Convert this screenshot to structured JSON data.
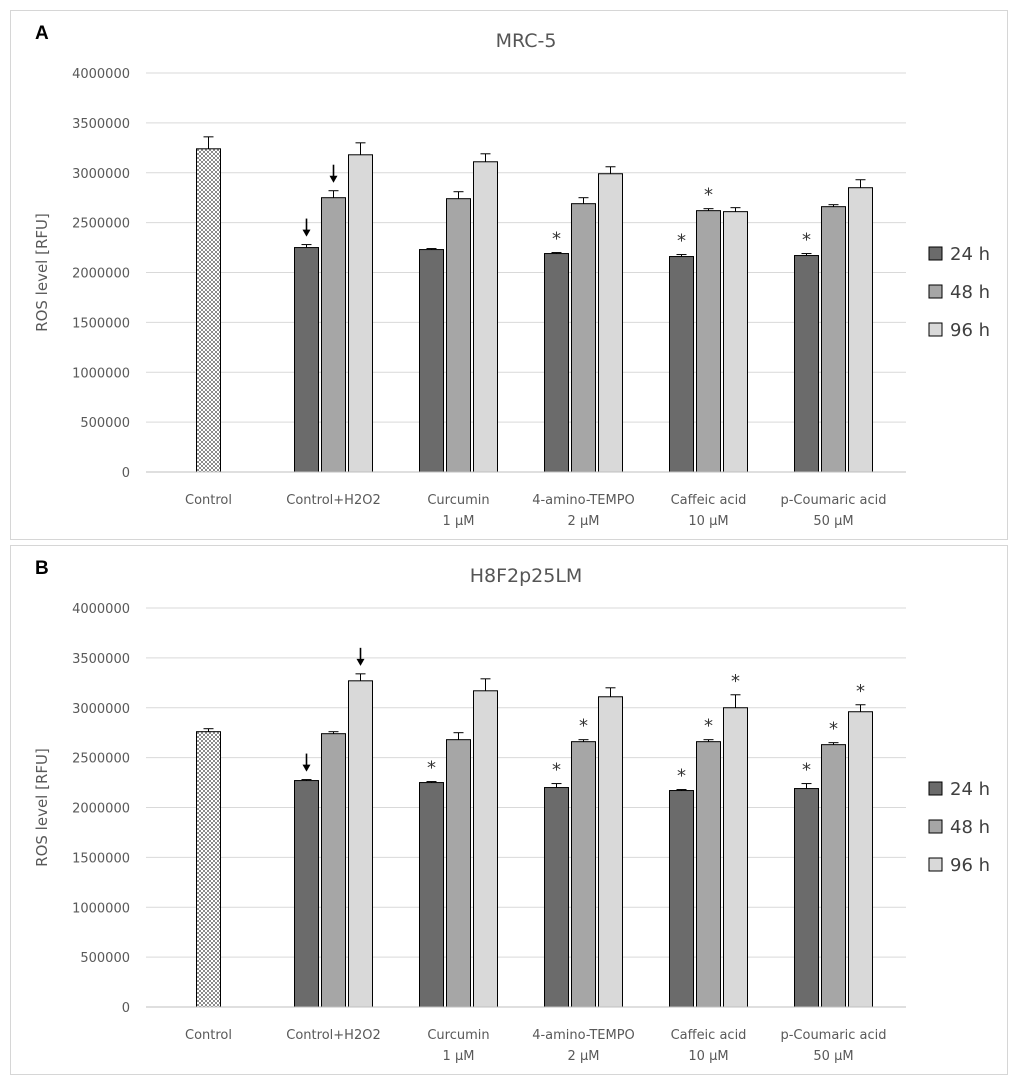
{
  "chart_data": [
    {
      "type": "bar",
      "panel_label": "A",
      "title": "MRC-5",
      "ylabel": "ROS level [RFU]",
      "xlabel": "",
      "ylim": [
        0,
        4000000
      ],
      "y_ticks": [
        "0",
        "500000",
        "1000000",
        "1500000",
        "2000000",
        "2500000",
        "3000000",
        "3500000",
        "4000000"
      ],
      "y_tick_values": [
        0,
        500000,
        1000000,
        1500000,
        2000000,
        2500000,
        3000000,
        3500000,
        4000000
      ],
      "gridlines": true,
      "legend_position": "right",
      "categories": [
        {
          "line1": "Control",
          "line2": ""
        },
        {
          "line1": "Control+H2O2",
          "line2": ""
        },
        {
          "line1": "Curcumin",
          "line2": "1 µM"
        },
        {
          "line1": "4-amino-TEMPO",
          "line2": "2 µM"
        },
        {
          "line1": "Caffeic acid",
          "line2": "10 µM"
        },
        {
          "line1": "p-Coumaric acid",
          "line2": "50 µM"
        }
      ],
      "control": {
        "value": 3240000,
        "error": 120000,
        "color": "#d0d0d0",
        "pattern": "checker"
      },
      "series": [
        {
          "name": "24 h",
          "color": "#6b6b6b",
          "values": [
            null,
            2250000,
            2230000,
            2190000,
            2160000,
            2170000
          ],
          "errors": [
            null,
            30000,
            10000,
            10000,
            20000,
            20000
          ],
          "markers": [
            "",
            "arrow",
            "",
            "*",
            "*",
            "*"
          ]
        },
        {
          "name": "48 h",
          "color": "#a6a6a6",
          "values": [
            null,
            2750000,
            2740000,
            2690000,
            2620000,
            2660000
          ],
          "errors": [
            null,
            70000,
            70000,
            60000,
            20000,
            20000
          ],
          "markers": [
            "",
            "arrow",
            "",
            "",
            "*",
            ""
          ]
        },
        {
          "name": "96 h",
          "color": "#d9d9d9",
          "values": [
            null,
            3180000,
            3110000,
            2990000,
            2610000,
            2850000
          ],
          "errors": [
            null,
            120000,
            80000,
            70000,
            40000,
            80000
          ],
          "markers": [
            "",
            "",
            "",
            "",
            "",
            ""
          ]
        }
      ]
    },
    {
      "type": "bar",
      "panel_label": "B",
      "title": "H8F2p25LM",
      "ylabel": "ROS level [RFU]",
      "xlabel": "",
      "ylim": [
        0,
        4000000
      ],
      "y_ticks": [
        "0",
        "500000",
        "1000000",
        "1500000",
        "2000000",
        "2500000",
        "3000000",
        "3500000",
        "4000000"
      ],
      "y_tick_values": [
        0,
        500000,
        1000000,
        1500000,
        2000000,
        2500000,
        3000000,
        3500000,
        4000000
      ],
      "gridlines": true,
      "legend_position": "right",
      "categories": [
        {
          "line1": "Control",
          "line2": ""
        },
        {
          "line1": "Control+H2O2",
          "line2": ""
        },
        {
          "line1": "Curcumin",
          "line2": "1 µM"
        },
        {
          "line1": "4-amino-TEMPO",
          "line2": "2 µM"
        },
        {
          "line1": "Caffeic acid",
          "line2": "10 µM"
        },
        {
          "line1": "p-Coumaric acid",
          "line2": "50 µM"
        }
      ],
      "control": {
        "value": 2760000,
        "error": 30000,
        "color": "#d0d0d0",
        "pattern": "checker"
      },
      "series": [
        {
          "name": "24 h",
          "color": "#6b6b6b",
          "values": [
            null,
            2270000,
            2250000,
            2200000,
            2170000,
            2190000
          ],
          "errors": [
            null,
            10000,
            10000,
            40000,
            10000,
            50000
          ],
          "markers": [
            "",
            "arrow",
            "*",
            "*",
            "*",
            "*"
          ]
        },
        {
          "name": "48 h",
          "color": "#a6a6a6",
          "values": [
            null,
            2740000,
            2680000,
            2660000,
            2660000,
            2630000
          ],
          "errors": [
            null,
            20000,
            70000,
            20000,
            20000,
            20000
          ],
          "markers": [
            "",
            "",
            "",
            "*",
            "*",
            "*"
          ]
        },
        {
          "name": "96 h",
          "color": "#d9d9d9",
          "values": [
            null,
            3270000,
            3170000,
            3110000,
            3000000,
            2960000
          ],
          "errors": [
            null,
            70000,
            120000,
            90000,
            130000,
            70000
          ],
          "markers": [
            "",
            "arrow",
            "",
            "",
            "*",
            "*"
          ]
        }
      ]
    }
  ]
}
